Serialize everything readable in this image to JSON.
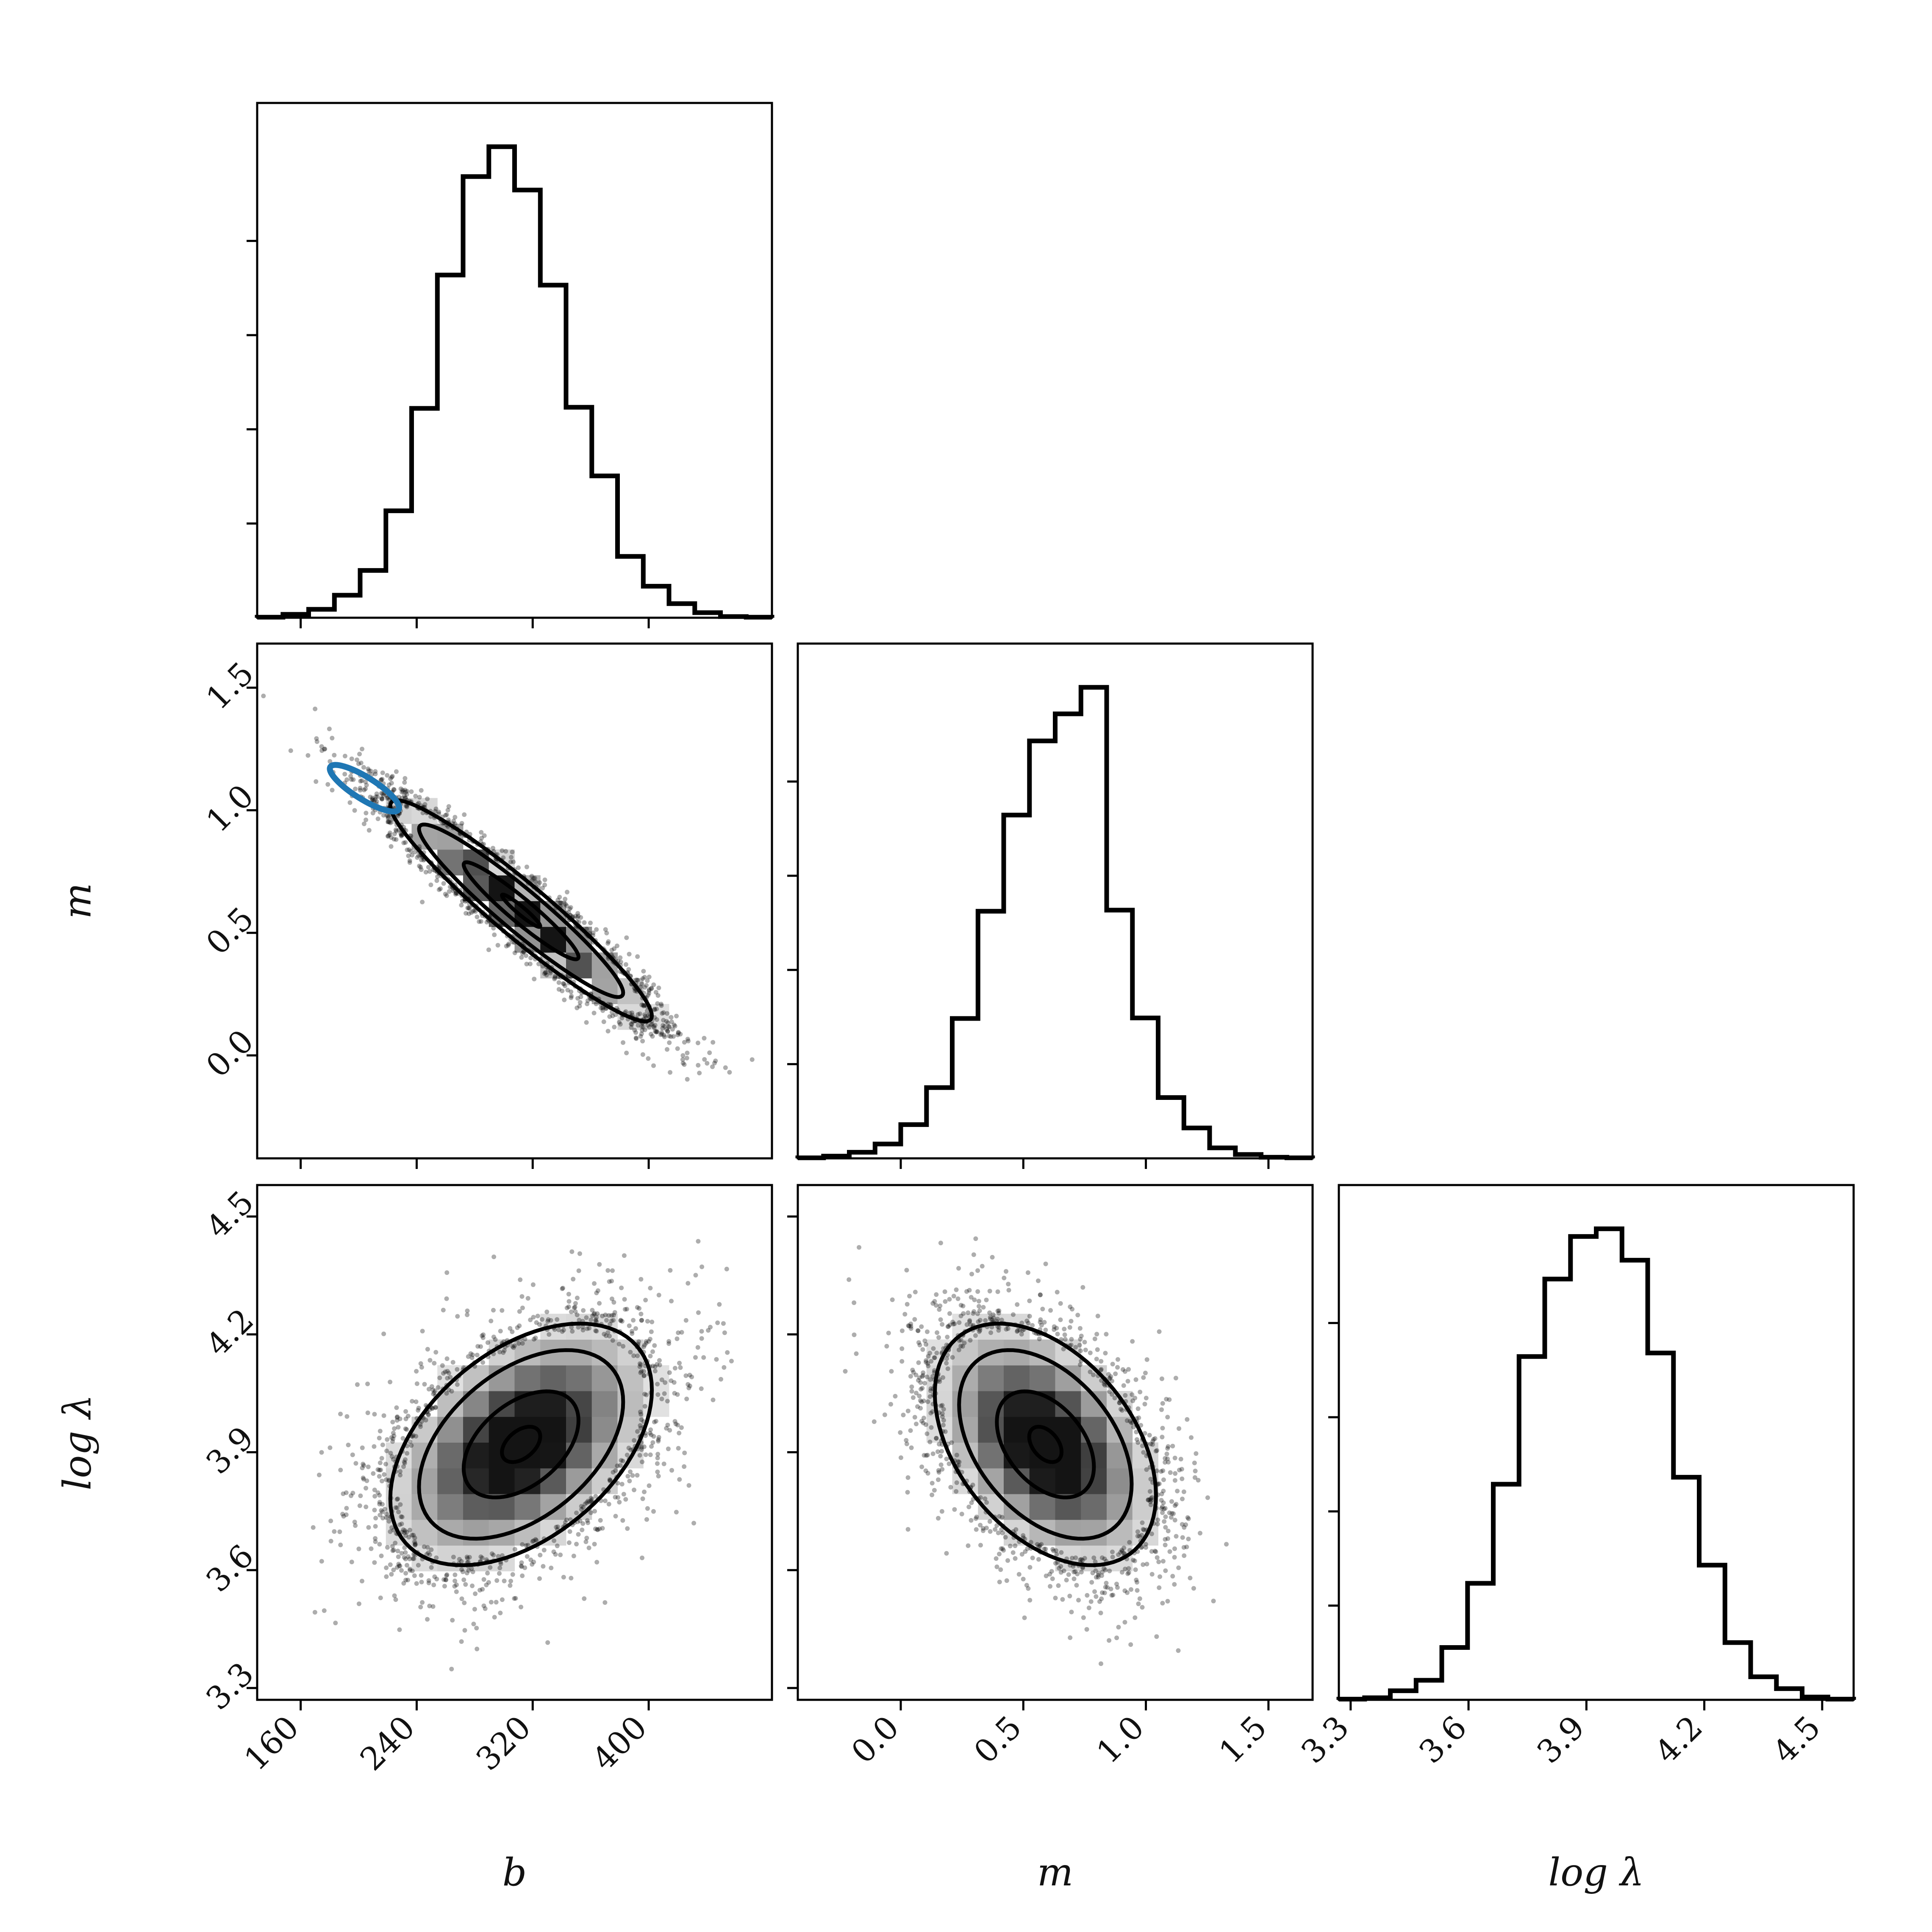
{
  "chart_data": {
    "type": "corner",
    "parameters": [
      {
        "name": "b",
        "label": "b",
        "range": [
          130,
          485
        ],
        "ticks": [
          160,
          240,
          320,
          400
        ],
        "tick_labels": [
          "160",
          "240",
          "320",
          "400"
        ]
      },
      {
        "name": "m",
        "label": "m",
        "range": [
          -0.42,
          1.68
        ],
        "ticks": [
          0.0,
          0.5,
          1.0,
          1.5
        ],
        "tick_labels": [
          "0.0",
          "0.5",
          "1.0",
          "1.5"
        ]
      },
      {
        "name": "log lambda",
        "label": "log λ",
        "range": [
          3.27,
          4.58
        ],
        "ticks": [
          3.3,
          3.6,
          3.9,
          4.2,
          4.5
        ],
        "tick_labels": [
          "3.3",
          "3.6",
          "3.9",
          "4.2",
          "4.5"
        ]
      }
    ],
    "marginals": [
      {
        "parameter": "b",
        "bin_edges": [
          130,
          147.75,
          165.5,
          183.25,
          201,
          218.75,
          236.5,
          254.25,
          272,
          289.75,
          307.5,
          325.25,
          343,
          360.75,
          378.5,
          396.25,
          414,
          431.75,
          449.5,
          467.25,
          485
        ],
        "counts": [
          1,
          6,
          15,
          40,
          84,
          190,
          372,
          609,
          784,
          837,
          760,
          591,
          374,
          252,
          109,
          56,
          25,
          9,
          2,
          1
        ]
      },
      {
        "parameter": "m",
        "bin_edges": [
          -0.42,
          -0.315,
          -0.21,
          -0.105,
          0.0,
          0.105,
          0.21,
          0.315,
          0.42,
          0.525,
          0.63,
          0.735,
          0.84,
          0.945,
          1.05,
          1.155,
          1.26,
          1.365,
          1.47,
          1.575,
          1.68
        ],
        "counts": [
          1,
          4,
          11,
          26,
          61,
          128,
          253,
          447,
          621,
          755,
          804,
          852,
          449,
          254,
          110,
          55,
          19,
          7,
          2,
          1
        ]
      },
      {
        "parameter": "log lambda",
        "bin_edges": [
          3.27,
          3.3355,
          3.401,
          3.4665,
          3.532,
          3.5975,
          3.663,
          3.7285,
          3.794,
          3.8595,
          3.925,
          3.9905,
          4.056,
          4.1215,
          4.187,
          4.2525,
          4.318,
          4.3835,
          4.449,
          4.5145,
          4.58
        ],
        "counts": [
          1,
          3,
          13,
          28,
          75,
          167,
          309,
          492,
          603,
          664,
          675,
          630,
          497,
          319,
          193,
          82,
          33,
          16,
          4,
          1
        ]
      }
    ],
    "pairs": [
      {
        "x": "b",
        "y": "m",
        "correlation": -0.95,
        "mean": [
          312,
          0.59
        ],
        "std": [
          44,
          0.22
        ]
      },
      {
        "x": "b",
        "y": "log lambda",
        "correlation": 0.45,
        "mean": [
          312,
          3.92
        ],
        "std": [
          44,
          0.15
        ]
      },
      {
        "x": "m",
        "y": "log lambda",
        "correlation": -0.42,
        "mean": [
          0.59,
          3.92
        ],
        "std": [
          0.22,
          0.15
        ]
      }
    ],
    "overlay": {
      "panel": [
        "b",
        "m"
      ],
      "shape": "ellipse",
      "color": "#1f77b4",
      "center": [
        204,
        1.09
      ],
      "description": "blue ellipse"
    },
    "grid": false
  },
  "colors": {
    "line": "#000000",
    "overlay": "#1f77b4",
    "background": "#ffffff"
  }
}
